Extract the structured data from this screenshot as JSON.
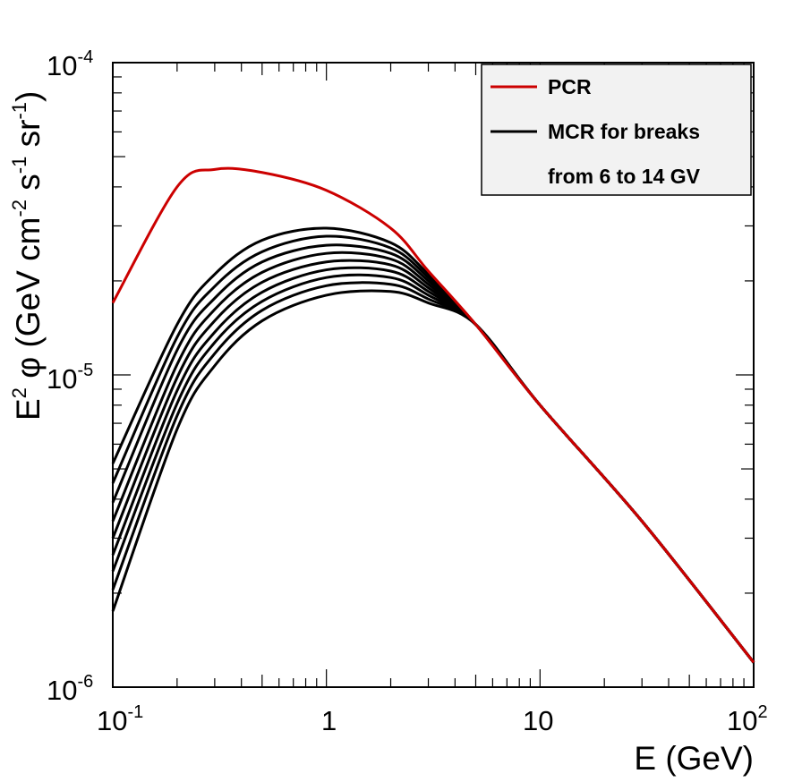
{
  "chart_data": {
    "type": "line",
    "xscale": "log",
    "yscale": "log",
    "xlim": [
      0.1,
      100
    ],
    "ylim": [
      1e-06,
      0.0001
    ],
    "xlabel": "E (GeV)",
    "ylabel": {
      "base": "E",
      "sup1": "2",
      "phi": " φ (GeV cm",
      "sup2": "-2",
      "s": " s",
      "sup3": "-1",
      "sr": " sr",
      "sup4": "-1",
      "close": ")"
    },
    "xticks": [
      {
        "base": "10",
        "exp": "-1"
      },
      {
        "base": "1",
        "exp": ""
      },
      {
        "base": "10",
        "exp": ""
      },
      {
        "base": "10",
        "exp": "2"
      }
    ],
    "yticks": [
      {
        "base": "10",
        "exp": "-6"
      },
      {
        "base": "10",
        "exp": "-5"
      },
      {
        "base": "10",
        "exp": "-4"
      }
    ],
    "legend": {
      "position": "top-right",
      "entries": [
        {
          "label": "PCR",
          "color": "#cc0000"
        },
        {
          "label": "MCR for breaks",
          "color": "#000000"
        },
        {
          "label": "from 6 to 14 GV",
          "color": ""
        }
      ]
    },
    "x": [
      0.1,
      0.2,
      0.3,
      0.5,
      1,
      2,
      3,
      5,
      10,
      30,
      100
    ],
    "series": [
      {
        "name": "PCR",
        "color": "#cc0000",
        "values": [
          1.7e-05,
          4e-05,
          4.55e-05,
          4.45e-05,
          3.9e-05,
          2.95e-05,
          2.15e-05,
          1.45e-05,
          8e-06,
          3.4e-06,
          1.2e-06
        ]
      },
      {
        "name": "MCR break 6 GV",
        "color": "#000000",
        "values": [
          5.2e-06,
          1.45e-05,
          2.1e-05,
          2.7e-05,
          2.95e-05,
          2.65e-05,
          2.1e-05,
          1.45e-05,
          8e-06,
          3.4e-06,
          1.2e-06
        ]
      },
      {
        "name": "MCR break 7 GV",
        "color": "#000000",
        "values": [
          4.5e-06,
          1.32e-05,
          1.92e-05,
          2.48e-05,
          2.78e-05,
          2.55e-05,
          2.05e-05,
          1.45e-05,
          8e-06,
          3.4e-06,
          1.2e-06
        ]
      },
      {
        "name": "MCR break 8 GV",
        "color": "#000000",
        "values": [
          3.9e-06,
          1.2e-05,
          1.76e-05,
          2.3e-05,
          2.6e-05,
          2.45e-05,
          2e-05,
          1.45e-05,
          8e-06,
          3.4e-06,
          1.2e-06
        ]
      },
      {
        "name": "MCR break 9 GV",
        "color": "#000000",
        "values": [
          3.4e-06,
          1.08e-05,
          1.62e-05,
          2.13e-05,
          2.45e-05,
          2.35e-05,
          1.95e-05,
          1.45e-05,
          8e-06,
          3.4e-06,
          1.2e-06
        ]
      },
      {
        "name": "MCR break 10 GV",
        "color": "#000000",
        "values": [
          3e-06,
          9.8e-06,
          1.49e-05,
          1.98e-05,
          2.3e-05,
          2.25e-05,
          1.9e-05,
          1.45e-05,
          8e-06,
          3.4e-06,
          1.2e-06
        ]
      },
      {
        "name": "MCR break 11 GV",
        "color": "#000000",
        "values": [
          2.65e-06,
          8.9e-06,
          1.37e-05,
          1.84e-05,
          2.17e-05,
          2.15e-05,
          1.85e-05,
          1.45e-05,
          8e-06,
          3.4e-06,
          1.2e-06
        ]
      },
      {
        "name": "MCR break 12 GV",
        "color": "#000000",
        "values": [
          2.35e-06,
          8.1e-06,
          1.27e-05,
          1.72e-05,
          2.05e-05,
          2.05e-05,
          1.8e-05,
          1.45e-05,
          8e-06,
          3.4e-06,
          1.2e-06
        ]
      },
      {
        "name": "MCR break 13 GV",
        "color": "#000000",
        "values": [
          2.05e-06,
          7.4e-06,
          1.17e-05,
          1.61e-05,
          1.93e-05,
          1.95e-05,
          1.75e-05,
          1.45e-05,
          8e-06,
          3.4e-06,
          1.2e-06
        ]
      },
      {
        "name": "MCR break 14 GV",
        "color": "#000000",
        "values": [
          1.75e-06,
          6.7e-06,
          1.07e-05,
          1.49e-05,
          1.8e-05,
          1.85e-05,
          1.7e-05,
          1.45e-05,
          8e-06,
          3.4e-06,
          1.2e-06
        ]
      }
    ]
  }
}
